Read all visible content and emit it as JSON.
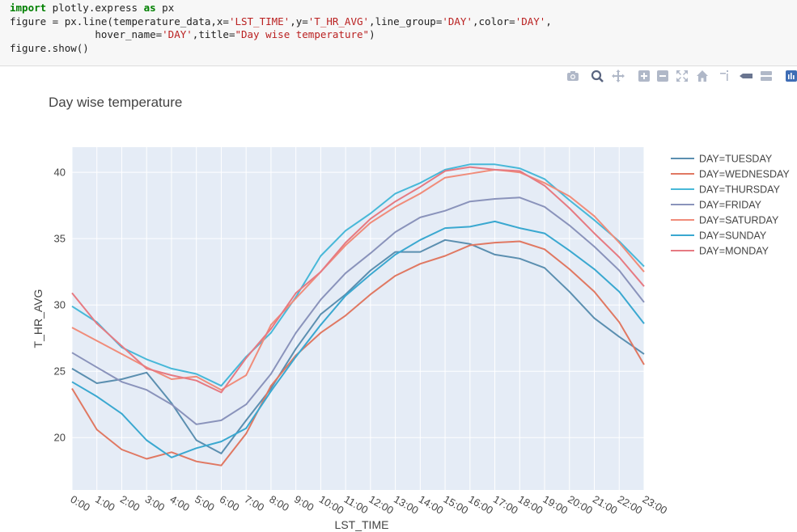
{
  "code": {
    "line1_kw1": "import",
    "line1_rest1": " plotly.express ",
    "line1_kw2": "as",
    "line1_rest2": " px",
    "line2_a": "figure = px.line(temperature_data,x=",
    "line2_s1": "'LST_TIME'",
    "line2_b": ",y=",
    "line2_s2": "'T_HR_AVG'",
    "line2_c": ",line_group=",
    "line2_s3": "'DAY'",
    "line2_d": ",color=",
    "line2_s4": "'DAY'",
    "line2_e": ",",
    "line3_a": "              hover_name=",
    "line3_s1": "'DAY'",
    "line3_b": ",title=",
    "line3_s2": "\"Day wise temperature\"",
    "line3_c": ")",
    "line4": "figure.show()"
  },
  "toolbar": {
    "icons": [
      "camera-icon",
      "zoom-icon",
      "pan-icon",
      "zoom-in-icon",
      "zoom-out-icon",
      "autoscale-icon",
      "home-icon",
      "spike-lines-icon",
      "hover-closest-icon",
      "hover-compare-icon",
      "plotly-logo-icon"
    ]
  },
  "chart_data": {
    "type": "line",
    "title": "Day wise temperature",
    "xlabel": "LST_TIME",
    "ylabel": "T_HR_AVG",
    "categories": [
      "0:00",
      "1:00",
      "2:00",
      "3:00",
      "4:00",
      "5:00",
      "6:00",
      "7:00",
      "8:00",
      "9:00",
      "10:00",
      "11:00",
      "12:00",
      "13:00",
      "14:00",
      "15:00",
      "16:00",
      "17:00",
      "18:00",
      "19:00",
      "20:00",
      "21:00",
      "22:00",
      "23:00"
    ],
    "ylim": [
      16.05,
      41.9
    ],
    "yticks": [
      20,
      25,
      30,
      35,
      40
    ],
    "grid": true,
    "legend_placement": "right",
    "series": [
      {
        "name": "DAY=TUESDAY",
        "color": "#5b8fb0",
        "values": [
          25.2,
          24.1,
          24.4,
          24.9,
          22.6,
          19.8,
          18.8,
          21.3,
          23.7,
          26.7,
          29.3,
          30.8,
          32.6,
          34.0,
          34.0,
          34.9,
          34.6,
          33.8,
          33.5,
          32.8,
          31.0,
          29.0,
          27.6,
          26.3
        ]
      },
      {
        "name": "DAY=WEDNESDAY",
        "color": "#e07862",
        "values": [
          23.7,
          20.6,
          19.1,
          18.4,
          18.9,
          18.2,
          17.9,
          20.3,
          23.9,
          26.2,
          27.9,
          29.2,
          30.8,
          32.2,
          33.1,
          33.7,
          34.5,
          34.7,
          34.8,
          34.2,
          32.7,
          31.0,
          28.7,
          25.5
        ]
      },
      {
        "name": "DAY=THURSDAY",
        "color": "#48b8d8",
        "values": [
          29.9,
          28.7,
          26.8,
          25.9,
          25.2,
          24.8,
          23.9,
          26.1,
          27.9,
          30.6,
          33.7,
          35.6,
          36.9,
          38.4,
          39.2,
          40.2,
          40.6,
          40.6,
          40.3,
          39.5,
          37.9,
          36.4,
          34.8,
          32.9
        ]
      },
      {
        "name": "DAY=FRIDAY",
        "color": "#8a93bb",
        "values": [
          26.4,
          25.3,
          24.2,
          23.6,
          22.5,
          21.0,
          21.3,
          22.5,
          24.8,
          27.9,
          30.4,
          32.4,
          33.9,
          35.5,
          36.6,
          37.1,
          37.8,
          38.0,
          38.1,
          37.4,
          36.0,
          34.4,
          32.6,
          30.2
        ]
      },
      {
        "name": "DAY=SATURDAY",
        "color": "#f08c7a",
        "values": [
          28.3,
          27.3,
          26.3,
          25.3,
          24.4,
          24.6,
          23.6,
          24.7,
          28.5,
          30.5,
          32.5,
          34.5,
          36.2,
          37.4,
          38.4,
          39.6,
          39.9,
          40.2,
          40.0,
          39.2,
          38.2,
          36.7,
          34.7,
          32.5
        ]
      },
      {
        "name": "DAY=SUNDAY",
        "color": "#3aa8d0",
        "values": [
          24.2,
          23.1,
          21.8,
          19.8,
          18.5,
          19.2,
          19.7,
          20.7,
          23.5,
          26.1,
          28.5,
          30.7,
          32.3,
          33.8,
          34.9,
          35.8,
          35.9,
          36.3,
          35.8,
          35.4,
          34.1,
          32.7,
          31.0,
          28.6
        ]
      },
      {
        "name": "DAY=MONDAY",
        "color": "#e67a82",
        "values": [
          30.9,
          28.6,
          26.9,
          25.2,
          24.7,
          24.3,
          23.4,
          26.0,
          28.2,
          30.9,
          32.5,
          34.7,
          36.5,
          37.8,
          38.9,
          40.1,
          40.4,
          40.2,
          40.1,
          39.0,
          37.3,
          35.4,
          33.6,
          31.4
        ]
      }
    ]
  }
}
